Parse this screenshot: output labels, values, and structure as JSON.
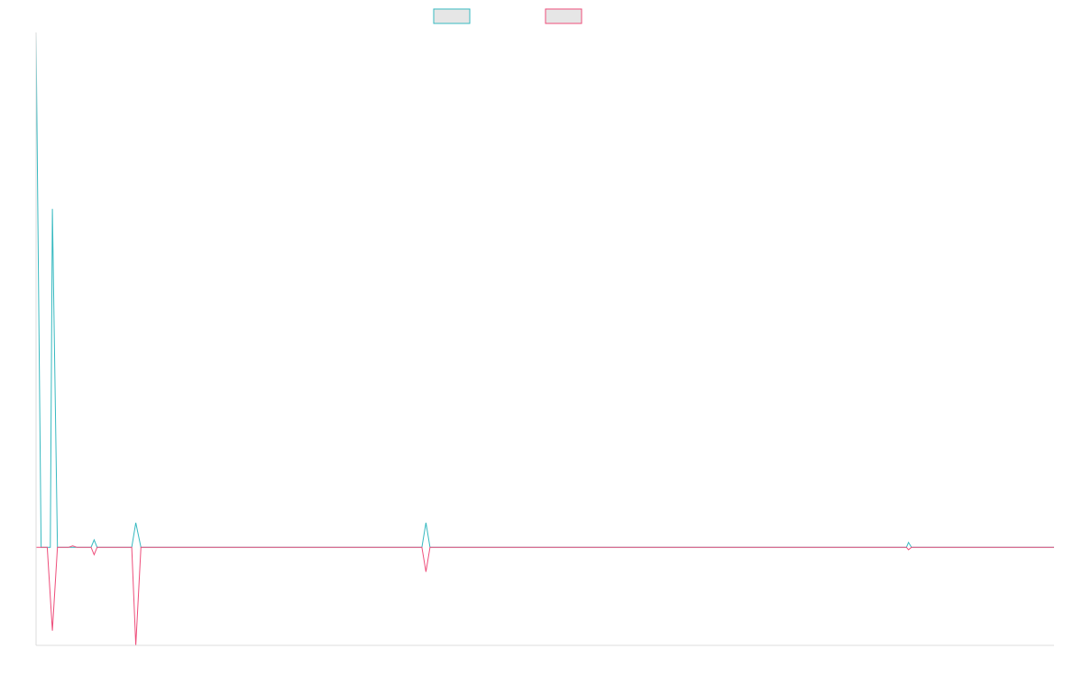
{
  "chart_data": {
    "type": "line",
    "title": "",
    "xlabel": "",
    "ylabel": "",
    "legend": {
      "placement": "top-center",
      "swatch_fill": "#e6e6e6"
    },
    "grid": false,
    "x_range": [
      0,
      100
    ],
    "y_range": [
      -20,
      105
    ],
    "series": [
      {
        "color": "#36b9c0",
        "points": [
          [
            0,
            105
          ],
          [
            0.5,
            0
          ],
          [
            1.4,
            0
          ],
          [
            1.6,
            69
          ],
          [
            2.1,
            0
          ],
          [
            5.4,
            0
          ],
          [
            5.7,
            1.5
          ],
          [
            6.0,
            0
          ],
          [
            9.4,
            0
          ],
          [
            9.8,
            5
          ],
          [
            10.3,
            0
          ],
          [
            37.9,
            0
          ],
          [
            38.3,
            5
          ],
          [
            38.7,
            0
          ],
          [
            85.5,
            0
          ],
          [
            85.7,
            1
          ],
          [
            86.0,
            0
          ],
          [
            100,
            0
          ]
        ]
      },
      {
        "color": "#ee4d7a",
        "points": [
          [
            0,
            0
          ],
          [
            1.1,
            0
          ],
          [
            1.6,
            -17
          ],
          [
            2.1,
            0
          ],
          [
            3.2,
            0
          ],
          [
            3.6,
            0.3
          ],
          [
            4.0,
            0
          ],
          [
            5.4,
            0
          ],
          [
            5.7,
            -1.5
          ],
          [
            6.0,
            0
          ],
          [
            9.4,
            0
          ],
          [
            9.8,
            -20
          ],
          [
            10.3,
            0
          ],
          [
            37.9,
            0
          ],
          [
            38.3,
            -5
          ],
          [
            38.7,
            0
          ],
          [
            85.5,
            0
          ],
          [
            85.7,
            -0.5
          ],
          [
            86.0,
            0
          ],
          [
            100,
            0
          ]
        ]
      }
    ]
  }
}
